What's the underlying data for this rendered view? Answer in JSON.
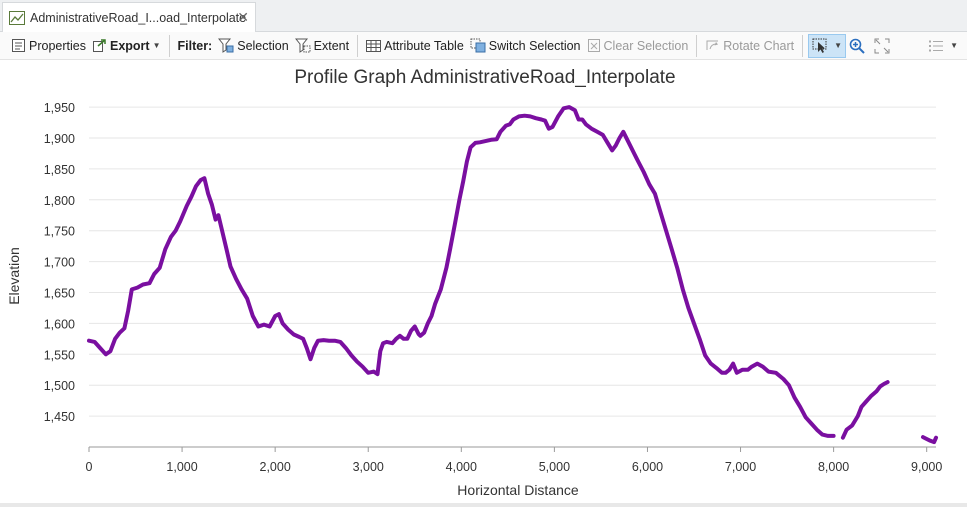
{
  "tab": {
    "title": "AdministrativeRoad_I...oad_Interpolate",
    "close_glyph": "✕"
  },
  "toolbar": {
    "properties": "Properties",
    "export": "Export",
    "filter_label": "Filter:",
    "selection": "Selection",
    "extent": "Extent",
    "attribute_table": "Attribute Table",
    "switch_selection": "Switch Selection",
    "clear_selection": "Clear Selection",
    "rotate_chart": "Rotate Chart"
  },
  "colors": {
    "series": "#7a0fa0",
    "grid": "#e6e6e6",
    "axis": "#9a9a9a"
  },
  "chart_data": {
    "type": "line",
    "title": "Profile Graph AdministrativeRoad_Interpolate",
    "xlabel": "Horizontal Distance",
    "ylabel": "Elevation",
    "xlim": [
      0,
      9100
    ],
    "ylim": [
      1400,
      1955
    ],
    "xticks": [
      0,
      1000,
      2000,
      3000,
      4000,
      5000,
      6000,
      7000,
      8000,
      9000
    ],
    "xtick_labels": [
      "0",
      "1,000",
      "2,000",
      "3,000",
      "4,000",
      "5,000",
      "6,000",
      "7,000",
      "8,000",
      "9,000"
    ],
    "yticks": [
      1450,
      1500,
      1550,
      1600,
      1650,
      1700,
      1750,
      1800,
      1850,
      1900,
      1950
    ],
    "ytick_labels": [
      "1,450",
      "1,500",
      "1,550",
      "1,600",
      "1,650",
      "1,700",
      "1,750",
      "1,800",
      "1,850",
      "1,900",
      "1,950"
    ],
    "grid": true,
    "series": [
      {
        "segments": [
          [
            [
              0,
              1572
            ],
            [
              60,
              1570
            ],
            [
              120,
              1560
            ],
            [
              180,
              1550
            ],
            [
              230,
              1555
            ],
            [
              280,
              1575
            ],
            [
              330,
              1585
            ],
            [
              380,
              1592
            ],
            [
              420,
              1620
            ],
            [
              460,
              1655
            ],
            [
              520,
              1658
            ],
            [
              580,
              1663
            ],
            [
              650,
              1665
            ],
            [
              700,
              1680
            ],
            [
              760,
              1690
            ],
            [
              820,
              1720
            ],
            [
              880,
              1740
            ],
            [
              930,
              1750
            ],
            [
              980,
              1765
            ],
            [
              1050,
              1790
            ],
            [
              1100,
              1805
            ],
            [
              1150,
              1822
            ],
            [
              1200,
              1832
            ],
            [
              1240,
              1835
            ],
            [
              1280,
              1810
            ],
            [
              1320,
              1792
            ],
            [
              1360,
              1768
            ],
            [
              1390,
              1775
            ],
            [
              1430,
              1750
            ],
            [
              1480,
              1718
            ],
            [
              1520,
              1692
            ],
            [
              1580,
              1672
            ],
            [
              1640,
              1655
            ],
            [
              1700,
              1640
            ],
            [
              1760,
              1612
            ],
            [
              1820,
              1595
            ],
            [
              1880,
              1598
            ],
            [
              1940,
              1595
            ],
            [
              2000,
              1612
            ],
            [
              2040,
              1615
            ],
            [
              2080,
              1600
            ],
            [
              2140,
              1590
            ],
            [
              2200,
              1582
            ],
            [
              2260,
              1578
            ],
            [
              2300,
              1575
            ],
            [
              2340,
              1560
            ],
            [
              2380,
              1542
            ],
            [
              2420,
              1560
            ],
            [
              2460,
              1572
            ],
            [
              2520,
              1573
            ],
            [
              2580,
              1572
            ],
            [
              2640,
              1572
            ],
            [
              2700,
              1570
            ],
            [
              2760,
              1560
            ],
            [
              2820,
              1548
            ],
            [
              2880,
              1538
            ],
            [
              2940,
              1530
            ],
            [
              3000,
              1520
            ],
            [
              3060,
              1522
            ],
            [
              3100,
              1518
            ],
            [
              3130,
              1555
            ],
            [
              3160,
              1568
            ],
            [
              3200,
              1570
            ],
            [
              3260,
              1568
            ],
            [
              3300,
              1575
            ],
            [
              3340,
              1580
            ],
            [
              3380,
              1575
            ],
            [
              3420,
              1575
            ],
            [
              3460,
              1588
            ],
            [
              3500,
              1595
            ],
            [
              3540,
              1583
            ],
            [
              3560,
              1580
            ],
            [
              3600,
              1585
            ],
            [
              3640,
              1600
            ],
            [
              3680,
              1612
            ],
            [
              3720,
              1632
            ],
            [
              3780,
              1655
            ],
            [
              3840,
              1690
            ],
            [
              3880,
              1720
            ],
            [
              3930,
              1760
            ],
            [
              3980,
              1800
            ],
            [
              4020,
              1830
            ],
            [
              4060,
              1862
            ],
            [
              4100,
              1885
            ],
            [
              4150,
              1892
            ],
            [
              4200,
              1893
            ],
            [
              4260,
              1895
            ],
            [
              4320,
              1897
            ],
            [
              4380,
              1898
            ],
            [
              4420,
              1910
            ],
            [
              4480,
              1920
            ],
            [
              4520,
              1922
            ],
            [
              4560,
              1930
            ],
            [
              4620,
              1935
            ],
            [
              4680,
              1936
            ],
            [
              4740,
              1935
            ],
            [
              4800,
              1932
            ],
            [
              4860,
              1930
            ],
            [
              4900,
              1928
            ],
            [
              4940,
              1915
            ],
            [
              4980,
              1918
            ],
            [
              5040,
              1935
            ],
            [
              5100,
              1948
            ],
            [
              5160,
              1950
            ],
            [
              5220,
              1945
            ],
            [
              5260,
              1930
            ],
            [
              5300,
              1930
            ],
            [
              5340,
              1922
            ],
            [
              5400,
              1915
            ],
            [
              5460,
              1910
            ],
            [
              5520,
              1905
            ],
            [
              5580,
              1890
            ],
            [
              5620,
              1880
            ],
            [
              5660,
              1888
            ],
            [
              5700,
              1900
            ],
            [
              5740,
              1910
            ],
            [
              5780,
              1898
            ],
            [
              5840,
              1880
            ],
            [
              5900,
              1862
            ],
            [
              5960,
              1845
            ],
            [
              6020,
              1825
            ],
            [
              6080,
              1810
            ],
            [
              6140,
              1780
            ],
            [
              6200,
              1750
            ],
            [
              6260,
              1720
            ],
            [
              6320,
              1690
            ],
            [
              6380,
              1655
            ],
            [
              6440,
              1625
            ],
            [
              6500,
              1600
            ],
            [
              6560,
              1575
            ],
            [
              6620,
              1548
            ],
            [
              6680,
              1535
            ],
            [
              6740,
              1528
            ],
            [
              6800,
              1520
            ],
            [
              6840,
              1520
            ],
            [
              6880,
              1525
            ],
            [
              6920,
              1535
            ],
            [
              6960,
              1520
            ],
            [
              7020,
              1525
            ],
            [
              7080,
              1525
            ],
            [
              7120,
              1530
            ],
            [
              7180,
              1535
            ],
            [
              7240,
              1530
            ],
            [
              7300,
              1522
            ],
            [
              7380,
              1520
            ],
            [
              7460,
              1510
            ],
            [
              7520,
              1500
            ],
            [
              7580,
              1480
            ],
            [
              7640,
              1465
            ],
            [
              7700,
              1448
            ],
            [
              7760,
              1438
            ],
            [
              7820,
              1428
            ],
            [
              7880,
              1420
            ],
            [
              7940,
              1418
            ],
            [
              8000,
              1418
            ]
          ],
          [
            [
              8100,
              1415
            ],
            [
              8140,
              1428
            ],
            [
              8200,
              1435
            ],
            [
              8260,
              1450
            ],
            [
              8300,
              1465
            ],
            [
              8340,
              1472
            ],
            [
              8400,
              1482
            ],
            [
              8460,
              1490
            ],
            [
              8500,
              1498
            ],
            [
              8540,
              1502
            ],
            [
              8580,
              1505
            ]
          ],
          [
            [
              8960,
              1416
            ],
            [
              9000,
              1413
            ],
            [
              9040,
              1410
            ],
            [
              9080,
              1408
            ],
            [
              9100,
              1415
            ]
          ]
        ]
      }
    ]
  }
}
